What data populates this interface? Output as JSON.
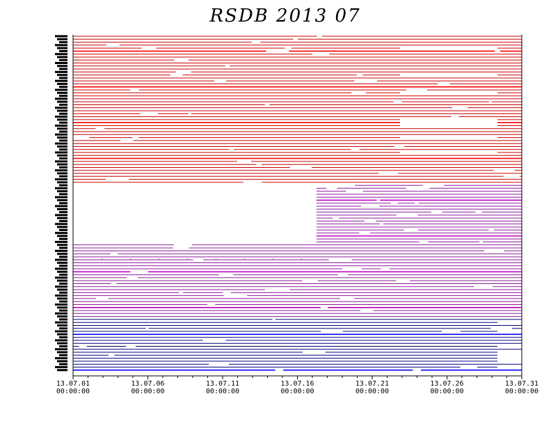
{
  "chart_data": {
    "type": "timeline",
    "title": "RSDB  2013  07",
    "xlabel": "",
    "ylabel": "",
    "x_ticks": [
      {
        "date": "13.07.01",
        "time": "00:00:00"
      },
      {
        "date": "13.07.06",
        "time": "00:00:00"
      },
      {
        "date": "13.07.11",
        "time": "00:00:00"
      },
      {
        "date": "13.07.16",
        "time": "00:00:00"
      },
      {
        "date": "13.07.21",
        "time": "00:00:00"
      },
      {
        "date": "13.07.26",
        "time": "00:00:00"
      },
      {
        "date": "13.07.31",
        "time": "00:00:00"
      }
    ],
    "xlim": [
      "2013-07-01 00:00:00",
      "2013-07-31 00:00:00"
    ],
    "groups": [
      {
        "color": "#cc0000",
        "row_count": 50,
        "accent_color": "#ff0000"
      },
      {
        "color": "#8e1a9e",
        "row_count": 45,
        "accent_color": "#c000c0"
      },
      {
        "color": "#000080",
        "row_count": 18,
        "accent_color": "#0000ff"
      }
    ],
    "grid": false,
    "legend": "none"
  }
}
